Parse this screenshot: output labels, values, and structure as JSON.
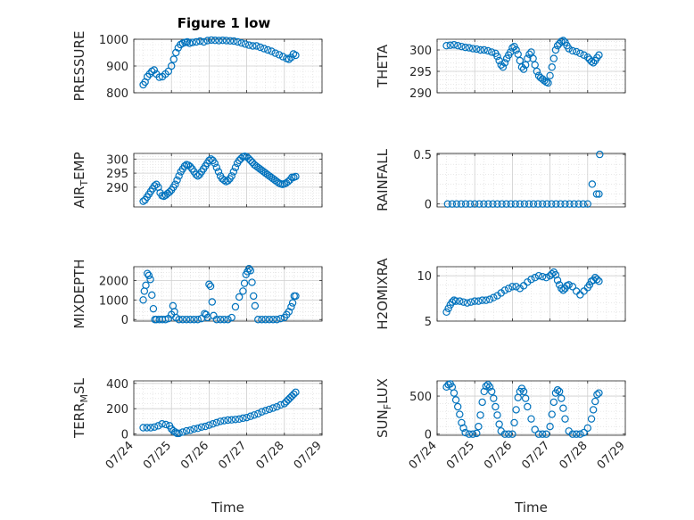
{
  "figure": {
    "title": "Figure 1 low",
    "marker_color": "#0072BD",
    "xlabel": "Time",
    "x_ticks": [
      "07/24",
      "07/25",
      "07/26",
      "07/27",
      "07/28",
      "07/29"
    ]
  },
  "chart_data": [
    {
      "type": "scatter",
      "ylabel": "PRESSURE",
      "xlabel": "",
      "ylim": [
        800,
        1000
      ],
      "yticks": [
        800,
        900,
        1000
      ],
      "grid": true,
      "x_range_days": [
        0,
        5
      ],
      "x": [
        0.25,
        0.3,
        0.36,
        0.42,
        0.48,
        0.54,
        0.6,
        0.68,
        0.76,
        0.84,
        0.92,
        1.0,
        1.06,
        1.12,
        1.18,
        1.24,
        1.3,
        1.36,
        1.42,
        1.48,
        1.56,
        1.66,
        1.76,
        1.86,
        1.96,
        2.06,
        2.16,
        2.26,
        2.36,
        2.46,
        2.56,
        2.66,
        2.76,
        2.86,
        2.96,
        3.06,
        3.16,
        3.26,
        3.36,
        3.46,
        3.56,
        3.66,
        3.76,
        3.86,
        3.96,
        4.06,
        4.12,
        4.18,
        4.24,
        4.3
      ],
      "y": [
        830,
        840,
        860,
        870,
        880,
        885,
        870,
        858,
        860,
        870,
        880,
        900,
        925,
        950,
        968,
        980,
        985,
        988,
        990,
        985,
        988,
        990,
        993,
        990,
        995,
        997,
        996,
        995,
        996,
        995,
        994,
        993,
        990,
        986,
        982,
        978,
        975,
        975,
        970,
        965,
        960,
        955,
        948,
        942,
        935,
        928,
        925,
        932,
        945,
        940
      ]
    },
    {
      "type": "scatter",
      "ylabel": "THETA",
      "xlabel": "",
      "ylim": [
        290,
        302.5
      ],
      "yticks": [
        290,
        295,
        300
      ],
      "grid": true,
      "x_range_days": [
        0,
        5
      ],
      "x": [
        0.25,
        0.35,
        0.45,
        0.55,
        0.65,
        0.75,
        0.85,
        0.95,
        1.05,
        1.15,
        1.25,
        1.35,
        1.45,
        1.55,
        1.6,
        1.65,
        1.7,
        1.75,
        1.8,
        1.85,
        1.9,
        1.95,
        2.0,
        2.05,
        2.1,
        2.15,
        2.2,
        2.25,
        2.3,
        2.35,
        2.4,
        2.45,
        2.5,
        2.55,
        2.6,
        2.65,
        2.7,
        2.75,
        2.8,
        2.85,
        2.9,
        2.95,
        3.0,
        3.05,
        3.1,
        3.15,
        3.2,
        3.25,
        3.3,
        3.35,
        3.4,
        3.45,
        3.5,
        3.6,
        3.7,
        3.8,
        3.9,
        4.0,
        4.05,
        4.1,
        4.15,
        4.2,
        4.25,
        4.3
      ],
      "y": [
        301,
        301.1,
        301.2,
        301,
        300.8,
        300.6,
        300.5,
        300.3,
        300.2,
        300,
        300,
        299.8,
        299.5,
        299.2,
        298.5,
        297.5,
        296.5,
        296,
        297,
        298,
        298.8,
        299.5,
        300.5,
        300.8,
        300,
        299,
        297.5,
        296,
        295.5,
        296.5,
        298,
        299,
        299.5,
        298,
        296.5,
        295,
        294,
        293.5,
        293.2,
        292.8,
        292.5,
        292.3,
        294,
        296,
        298,
        300,
        301,
        301.5,
        302,
        302.2,
        301.8,
        301,
        300.3,
        299.8,
        299.6,
        299.2,
        298.8,
        298.3,
        297.8,
        297.3,
        297,
        297.5,
        298.2,
        298.8
      ]
    },
    {
      "type": "scatter",
      "ylabel": "AIR_TEMP",
      "xlabel": "",
      "ylim": [
        283,
        302
      ],
      "yticks": [
        290,
        295,
        300
      ],
      "grid": true,
      "x_range_days": [
        0,
        5
      ],
      "x": [
        0.25,
        0.3,
        0.35,
        0.4,
        0.45,
        0.5,
        0.55,
        0.6,
        0.65,
        0.7,
        0.75,
        0.8,
        0.85,
        0.9,
        0.95,
        1.0,
        1.05,
        1.1,
        1.15,
        1.2,
        1.25,
        1.3,
        1.35,
        1.4,
        1.45,
        1.5,
        1.55,
        1.6,
        1.65,
        1.7,
        1.75,
        1.8,
        1.85,
        1.9,
        1.95,
        2.0,
        2.05,
        2.1,
        2.15,
        2.2,
        2.25,
        2.3,
        2.35,
        2.4,
        2.45,
        2.5,
        2.55,
        2.6,
        2.65,
        2.7,
        2.75,
        2.8,
        2.85,
        2.9,
        2.95,
        3.0,
        3.05,
        3.1,
        3.15,
        3.2,
        3.25,
        3.3,
        3.35,
        3.4,
        3.45,
        3.5,
        3.55,
        3.6,
        3.65,
        3.7,
        3.75,
        3.8,
        3.85,
        3.9,
        3.95,
        4.0,
        4.05,
        4.1,
        4.15,
        4.2,
        4.25,
        4.3
      ],
      "y": [
        285,
        285.5,
        286.5,
        287.5,
        288.5,
        289.5,
        290.5,
        291,
        290,
        288,
        287,
        286.8,
        287.2,
        287.8,
        288.3,
        289,
        290,
        291,
        292.5,
        294,
        295.5,
        296.5,
        297.5,
        298,
        297.8,
        297.3,
        296.5,
        295.5,
        294.5,
        294,
        294.5,
        295.5,
        296.5,
        297.5,
        298.5,
        299.5,
        300,
        299.5,
        298.5,
        297,
        295.5,
        294,
        293,
        292.5,
        292,
        292.3,
        293,
        294,
        295.5,
        297,
        298.5,
        299.5,
        300.2,
        300.8,
        301,
        300.8,
        300.2,
        299.5,
        298.8,
        298,
        297.5,
        297,
        296.5,
        296,
        295.5,
        295,
        294.5,
        294,
        293.5,
        293,
        292.5,
        292,
        291.5,
        291.2,
        291,
        291.2,
        291.5,
        292,
        292.6,
        293.5,
        293.5,
        293.8
      ]
    },
    {
      "type": "scatter",
      "ylabel": "RAINFALL",
      "xlabel": "",
      "ylim": [
        -0.03,
        0.51
      ],
      "yticks": [
        0,
        0.5
      ],
      "grid": true,
      "x_range_days": [
        0,
        5
      ],
      "x": [
        0.28,
        0.4,
        0.52,
        0.64,
        0.76,
        0.88,
        1.0,
        1.12,
        1.24,
        1.36,
        1.48,
        1.6,
        1.72,
        1.84,
        1.96,
        2.08,
        2.2,
        2.32,
        2.44,
        2.56,
        2.68,
        2.8,
        2.92,
        3.04,
        3.16,
        3.28,
        3.4,
        3.52,
        3.64,
        3.76,
        3.88,
        4.0,
        4.12,
        4.24,
        4.3,
        4.32
      ],
      "y": [
        0,
        0,
        0,
        0,
        0,
        0,
        0,
        0,
        0,
        0,
        0,
        0,
        0,
        0,
        0,
        0,
        0,
        0,
        0,
        0,
        0,
        0,
        0,
        0,
        0,
        0,
        0,
        0,
        0,
        0,
        0,
        0,
        0.2,
        0.1,
        0.1,
        0.5
      ]
    },
    {
      "type": "scatter",
      "ylabel": "MIXDEPTH",
      "xlabel": "",
      "ylim": [
        -80,
        2700
      ],
      "yticks": [
        0,
        1000,
        2000
      ],
      "grid": true,
      "x_range_days": [
        0,
        5
      ],
      "x": [
        0.25,
        0.28,
        0.32,
        0.36,
        0.4,
        0.44,
        0.48,
        0.52,
        0.56,
        0.6,
        0.68,
        0.76,
        0.84,
        0.92,
        1.0,
        1.04,
        1.08,
        1.12,
        1.2,
        1.3,
        1.4,
        1.5,
        1.6,
        1.7,
        1.8,
        1.88,
        1.92,
        1.96,
        2.0,
        2.04,
        2.08,
        2.12,
        2.2,
        2.3,
        2.4,
        2.5,
        2.6,
        2.7,
        2.8,
        2.9,
        2.94,
        2.98,
        3.02,
        3.06,
        3.1,
        3.14,
        3.18,
        3.22,
        3.3,
        3.4,
        3.5,
        3.6,
        3.7,
        3.8,
        3.9,
        4.0,
        4.06,
        4.12,
        4.18,
        4.22,
        4.26,
        4.3
      ],
      "y": [
        1000,
        1450,
        1750,
        2350,
        2250,
        2050,
        1250,
        550,
        0,
        0,
        0,
        0,
        0,
        50,
        250,
        700,
        400,
        100,
        0,
        0,
        0,
        0,
        0,
        0,
        50,
        300,
        250,
        100,
        1800,
        1700,
        900,
        200,
        0,
        0,
        0,
        0,
        100,
        650,
        1150,
        1450,
        1850,
        2300,
        2450,
        2600,
        2500,
        1900,
        1200,
        700,
        0,
        0,
        0,
        0,
        0,
        0,
        50,
        100,
        250,
        400,
        650,
        850,
        1200,
        1200
      ]
    },
    {
      "type": "scatter",
      "ylabel": "H2OMIXRA",
      "xlabel": "",
      "ylim": [
        5,
        11
      ],
      "yticks": [
        5,
        10
      ],
      "grid": true,
      "x_range_days": [
        0,
        5
      ],
      "x": [
        0.25,
        0.3,
        0.35,
        0.4,
        0.45,
        0.5,
        0.6,
        0.7,
        0.8,
        0.9,
        1.0,
        1.1,
        1.2,
        1.3,
        1.4,
        1.5,
        1.6,
        1.7,
        1.8,
        1.9,
        2.0,
        2.1,
        2.2,
        2.3,
        2.4,
        2.5,
        2.6,
        2.7,
        2.8,
        2.9,
        3.0,
        3.05,
        3.1,
        3.15,
        3.2,
        3.25,
        3.3,
        3.35,
        3.4,
        3.45,
        3.5,
        3.6,
        3.7,
        3.8,
        3.9,
        4.0,
        4.05,
        4.1,
        4.15,
        4.2,
        4.25,
        4.3
      ],
      "y": [
        6,
        6.4,
        6.8,
        7.1,
        7.3,
        7.2,
        7.2,
        7.1,
        7.0,
        7.1,
        7.2,
        7.2,
        7.3,
        7.3,
        7.4,
        7.6,
        7.8,
        8.1,
        8.4,
        8.6,
        8.8,
        8.8,
        8.6,
        8.9,
        9.3,
        9.6,
        9.8,
        10.0,
        9.9,
        9.8,
        10.0,
        10.2,
        10.4,
        10.1,
        9.5,
        9.0,
        8.6,
        8.4,
        8.6,
        8.9,
        9.0,
        8.8,
        8.3,
        7.9,
        8.3,
        8.7,
        9.0,
        9.4,
        9.5,
        9.8,
        9.6,
        9.4
      ]
    },
    {
      "type": "scatter",
      "ylabel": "TERR_MSL",
      "xlabel": "",
      "ylim": [
        -10,
        420
      ],
      "yticks": [
        0,
        200,
        400
      ],
      "grid": true,
      "x_range_days": [
        0,
        5
      ],
      "x": [
        0.25,
        0.35,
        0.45,
        0.55,
        0.65,
        0.75,
        0.85,
        0.95,
        1.0,
        1.05,
        1.1,
        1.15,
        1.2,
        1.3,
        1.4,
        1.5,
        1.6,
        1.7,
        1.8,
        1.9,
        2.0,
        2.1,
        2.2,
        2.3,
        2.4,
        2.5,
        2.6,
        2.7,
        2.8,
        2.9,
        3.0,
        3.1,
        3.2,
        3.3,
        3.4,
        3.5,
        3.6,
        3.7,
        3.8,
        3.9,
        4.0,
        4.05,
        4.1,
        4.15,
        4.2,
        4.25,
        4.3
      ],
      "y": [
        50,
        50,
        50,
        55,
        65,
        80,
        75,
        65,
        40,
        25,
        15,
        5,
        5,
        15,
        25,
        30,
        40,
        45,
        55,
        60,
        70,
        80,
        90,
        100,
        105,
        110,
        112,
        115,
        118,
        125,
        130,
        140,
        150,
        160,
        175,
        185,
        195,
        205,
        215,
        230,
        240,
        255,
        270,
        285,
        300,
        315,
        330
      ]
    },
    {
      "type": "scatter",
      "ylabel": "SUN_FLUX",
      "xlabel": "",
      "ylim": [
        -15,
        700
      ],
      "yticks": [
        0,
        500
      ],
      "grid": true,
      "x_range_days": [
        0,
        5
      ],
      "x": [
        0.25,
        0.3,
        0.35,
        0.4,
        0.45,
        0.5,
        0.55,
        0.6,
        0.65,
        0.7,
        0.75,
        0.85,
        0.95,
        1.05,
        1.1,
        1.15,
        1.2,
        1.25,
        1.3,
        1.35,
        1.4,
        1.45,
        1.5,
        1.55,
        1.6,
        1.65,
        1.7,
        1.8,
        1.9,
        2.0,
        2.05,
        2.1,
        2.15,
        2.2,
        2.25,
        2.3,
        2.35,
        2.4,
        2.5,
        2.6,
        2.7,
        2.8,
        2.9,
        3.0,
        3.05,
        3.1,
        3.15,
        3.2,
        3.25,
        3.3,
        3.35,
        3.4,
        3.5,
        3.6,
        3.7,
        3.8,
        3.9,
        4.0,
        4.1,
        4.15,
        4.2,
        4.25,
        4.3
      ],
      "y": [
        620,
        650,
        660,
        620,
        540,
        450,
        360,
        260,
        150,
        80,
        20,
        0,
        0,
        10,
        100,
        250,
        420,
        560,
        630,
        650,
        620,
        560,
        470,
        360,
        250,
        130,
        40,
        0,
        0,
        0,
        150,
        320,
        480,
        560,
        600,
        560,
        470,
        360,
        200,
        60,
        0,
        0,
        0,
        100,
        260,
        420,
        540,
        580,
        560,
        470,
        340,
        200,
        40,
        0,
        0,
        0,
        20,
        80,
        200,
        320,
        430,
        520,
        540
      ]
    }
  ]
}
